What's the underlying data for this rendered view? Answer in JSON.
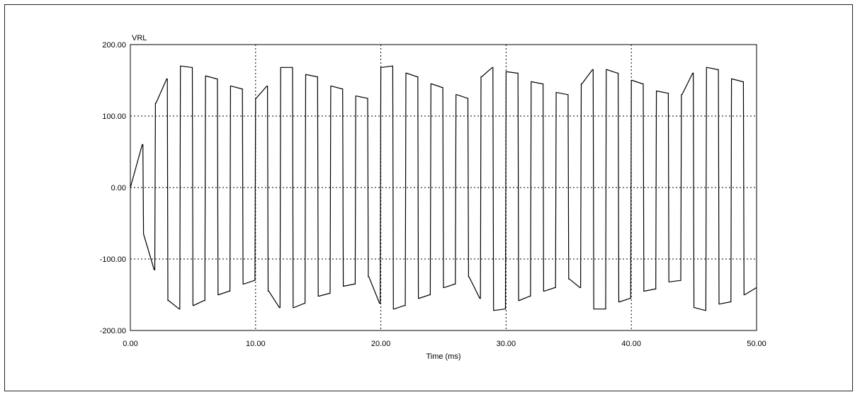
{
  "chart_data": {
    "type": "line",
    "title": "",
    "xlabel": "Time (ms)",
    "ylabel": "",
    "series_label": "VRL",
    "xlim": [
      0,
      50
    ],
    "ylim": [
      -200,
      200
    ],
    "x_ticks": [
      0,
      10,
      20,
      30,
      40,
      50
    ],
    "y_ticks": [
      -200,
      -100,
      0,
      100,
      200
    ],
    "x_tick_labels": [
      "0.00",
      "10.00",
      "20.00",
      "30.00",
      "40.00",
      "50.00"
    ],
    "y_tick_labels": [
      "-200.00",
      "-100.00",
      "0.00",
      "100.00",
      "200.00"
    ],
    "grid": true,
    "colors": {
      "trace": "#000000",
      "grid": "#000000",
      "axis": "#000000"
    },
    "series": [
      {
        "name": "VRL",
        "x": [
          0.0,
          0.95,
          1.0,
          1.05,
          1.9,
          1.95,
          2.0,
          2.05,
          2.9,
          2.95,
          3.0,
          3.05,
          3.9,
          3.95,
          4.0,
          4.05,
          4.9,
          4.95,
          5.0,
          5.05,
          5.9,
          5.95,
          6.0,
          6.05,
          6.9,
          6.95,
          7.0,
          7.05,
          7.9,
          7.95,
          8.0,
          8.05,
          8.9,
          8.95,
          9.0,
          9.05,
          9.9,
          9.95,
          10.0,
          10.05,
          10.9,
          10.95,
          11.0,
          11.05,
          11.9,
          11.95,
          12.0,
          12.05,
          12.9,
          12.95,
          13.0,
          13.05,
          13.9,
          13.95,
          14.0,
          14.05,
          14.9,
          14.95,
          15.0,
          15.05,
          15.9,
          15.95,
          16.0,
          16.05,
          16.9,
          16.95,
          17.0,
          17.05,
          17.9,
          17.95,
          18.0,
          18.05,
          18.9,
          18.95,
          19.0,
          19.05,
          19.9,
          19.95,
          20.0,
          20.05,
          20.9,
          20.95,
          21.0,
          21.05,
          21.9,
          21.95,
          22.0,
          22.05,
          22.9,
          22.95,
          23.0,
          23.05,
          23.9,
          23.95,
          24.0,
          24.05,
          24.9,
          24.95,
          25.0,
          25.05,
          25.9,
          25.95,
          26.0,
          26.05,
          26.9,
          26.95,
          27.0,
          27.05,
          27.9,
          27.95,
          28.0,
          28.05,
          28.9,
          28.95,
          29.0,
          29.05,
          29.9,
          29.95,
          30.0,
          30.05,
          30.9,
          30.95,
          31.0,
          31.05,
          31.9,
          31.95,
          32.0,
          32.05,
          32.9,
          32.95,
          33.0,
          33.05,
          33.9,
          33.95,
          34.0,
          34.05,
          34.9,
          34.95,
          35.0,
          35.05,
          35.9,
          35.95,
          36.0,
          36.05,
          36.9,
          36.95,
          37.0,
          37.05,
          37.9,
          37.95,
          38.0,
          38.05,
          38.9,
          38.95,
          39.0,
          39.05,
          39.9,
          39.95,
          40.0,
          40.05,
          40.9,
          40.95,
          41.0,
          41.05,
          41.9,
          41.95,
          42.0,
          42.05,
          42.9,
          42.95,
          43.0,
          43.05,
          43.9,
          43.95,
          44.0,
          44.05,
          44.9,
          44.95,
          45.0,
          45.05,
          45.9,
          45.95,
          46.0,
          46.05,
          46.9,
          46.95,
          47.0,
          47.05,
          47.9,
          47.95,
          48.0,
          48.05,
          48.9,
          48.95,
          49.0,
          49.05,
          50.0
        ],
        "y": [
          0,
          60,
          60,
          -65,
          -115,
          -115,
          118,
          118,
          152,
          152,
          -158,
          -158,
          -170,
          -170,
          170,
          170,
          168,
          168,
          -165,
          -165,
          -158,
          -158,
          156,
          156,
          152,
          152,
          -150,
          -150,
          -145,
          -145,
          142,
          142,
          138,
          138,
          -135,
          -135,
          -130,
          -130,
          125,
          125,
          142,
          142,
          -145,
          -145,
          -168,
          -168,
          168,
          168,
          168,
          168,
          -168,
          -168,
          -162,
          -162,
          158,
          158,
          155,
          155,
          -152,
          -152,
          -148,
          -148,
          142,
          142,
          138,
          138,
          -138,
          -138,
          -135,
          -135,
          128,
          128,
          125,
          125,
          -125,
          -125,
          -162,
          -162,
          168,
          168,
          170,
          170,
          -170,
          -170,
          -165,
          -165,
          160,
          160,
          155,
          155,
          -155,
          -155,
          -150,
          -150,
          145,
          145,
          140,
          140,
          -140,
          -140,
          -135,
          -135,
          130,
          130,
          125,
          125,
          -125,
          -125,
          -155,
          -155,
          155,
          155,
          168,
          168,
          -172,
          -172,
          -170,
          -170,
          162,
          162,
          160,
          160,
          -158,
          -158,
          -152,
          -152,
          148,
          148,
          145,
          145,
          -145,
          -145,
          -140,
          -140,
          133,
          133,
          130,
          130,
          -128,
          -128,
          -140,
          -140,
          145,
          145,
          165,
          165,
          -170,
          -170,
          -170,
          -170,
          165,
          165,
          160,
          160,
          -160,
          -160,
          -155,
          -155,
          150,
          150,
          145,
          145,
          -145,
          -145,
          -142,
          -142,
          135,
          135,
          132,
          132,
          -132,
          -132,
          -130,
          -130,
          130,
          130,
          160,
          160,
          -168,
          -168,
          -172,
          -172,
          168,
          168,
          165,
          165,
          -163,
          -163,
          -160,
          -160,
          152,
          152,
          148,
          148,
          -150,
          -150,
          -140
        ]
      }
    ]
  }
}
